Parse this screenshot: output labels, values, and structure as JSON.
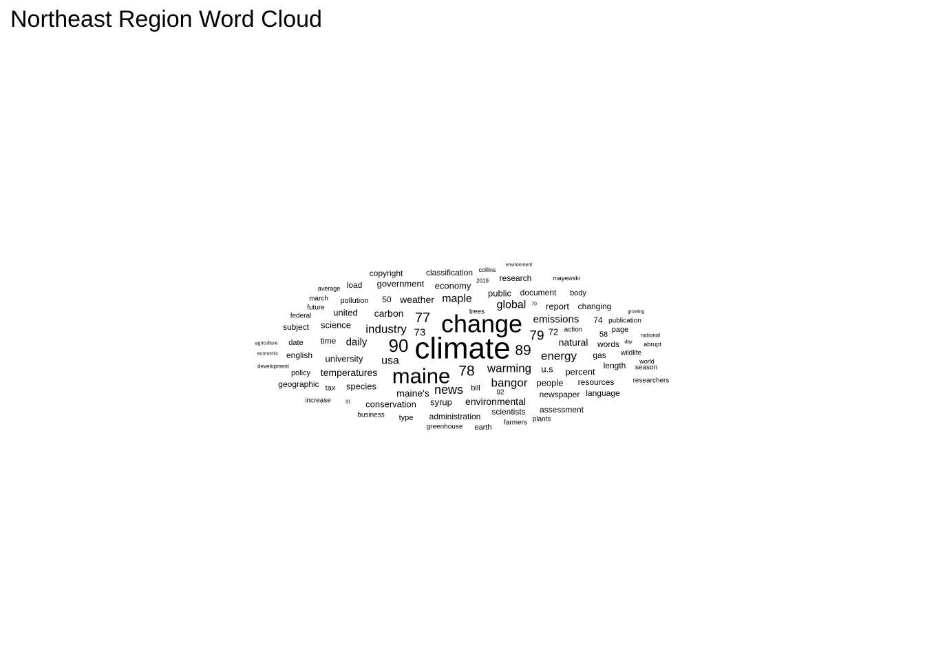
{
  "chart_data": {
    "type": "wordcloud",
    "title": "Northeast Region Word Cloud",
    "words": [
      {
        "text": "climate",
        "weight": 44
      },
      {
        "text": "change",
        "weight": 36
      },
      {
        "text": "maine",
        "weight": 31
      },
      {
        "text": "90",
        "weight": 26
      },
      {
        "text": "89",
        "weight": 21
      },
      {
        "text": "78",
        "weight": 21
      },
      {
        "text": "77",
        "weight": 20
      },
      {
        "text": "79",
        "weight": 19
      },
      {
        "text": "news",
        "weight": 18
      },
      {
        "text": "warming",
        "weight": 17
      },
      {
        "text": "bangor",
        "weight": 17
      },
      {
        "text": "industry",
        "weight": 17
      },
      {
        "text": "energy",
        "weight": 17
      },
      {
        "text": "global",
        "weight": 16
      },
      {
        "text": "usa",
        "weight": 16
      },
      {
        "text": "maple",
        "weight": 16
      },
      {
        "text": "73",
        "weight": 15
      },
      {
        "text": "emissions",
        "weight": 15
      },
      {
        "text": "daily",
        "weight": 15
      },
      {
        "text": "carbon",
        "weight": 14
      },
      {
        "text": "natural",
        "weight": 14
      },
      {
        "text": "environmental",
        "weight": 14
      },
      {
        "text": "temperatures",
        "weight": 14
      },
      {
        "text": "weather",
        "weight": 14
      },
      {
        "text": "maine's",
        "weight": 14
      },
      {
        "text": "72",
        "weight": 13
      },
      {
        "text": "u.s",
        "weight": 13
      },
      {
        "text": "university",
        "weight": 13
      },
      {
        "text": "species",
        "weight": 13
      },
      {
        "text": "science",
        "weight": 13
      },
      {
        "text": "percent",
        "weight": 13
      },
      {
        "text": "economy",
        "weight": 13
      },
      {
        "text": "government",
        "weight": 13
      },
      {
        "text": "report",
        "weight": 13
      },
      {
        "text": "public",
        "weight": 13
      },
      {
        "text": "united",
        "weight": 13
      },
      {
        "text": "people",
        "weight": 13
      },
      {
        "text": "conservation",
        "weight": 13
      },
      {
        "text": "syrup",
        "weight": 13
      },
      {
        "text": "research",
        "weight": 12
      },
      {
        "text": "classification",
        "weight": 12
      },
      {
        "text": "time",
        "weight": 12
      },
      {
        "text": "english",
        "weight": 12
      },
      {
        "text": "administration",
        "weight": 12
      },
      {
        "text": "scientists",
        "weight": 12
      },
      {
        "text": "assessment",
        "weight": 12
      },
      {
        "text": "newspaper",
        "weight": 12
      },
      {
        "text": "resources",
        "weight": 12
      },
      {
        "text": "language",
        "weight": 12
      },
      {
        "text": "changing",
        "weight": 12
      },
      {
        "text": "document",
        "weight": 12
      },
      {
        "text": "74",
        "weight": 12
      },
      {
        "text": "50",
        "weight": 12
      },
      {
        "text": "geographic",
        "weight": 12
      },
      {
        "text": "words",
        "weight": 12
      },
      {
        "text": "gas",
        "weight": 12
      },
      {
        "text": "length",
        "weight": 12
      },
      {
        "text": "subject",
        "weight": 12
      },
      {
        "text": "copyright",
        "weight": 12
      },
      {
        "text": "load",
        "weight": 12
      },
      {
        "text": "58",
        "weight": 11
      },
      {
        "text": "page",
        "weight": 11
      },
      {
        "text": "pollution",
        "weight": 11
      },
      {
        "text": "body",
        "weight": 11
      },
      {
        "text": "tax",
        "weight": 11
      },
      {
        "text": "bill",
        "weight": 11
      },
      {
        "text": "date",
        "weight": 11
      },
      {
        "text": "policy",
        "weight": 11
      },
      {
        "text": "type",
        "weight": 11
      },
      {
        "text": "earth",
        "weight": 11
      },
      {
        "text": "wildlife",
        "weight": 10
      },
      {
        "text": "publication",
        "weight": 10
      },
      {
        "text": "92",
        "weight": 10
      },
      {
        "text": "researchers",
        "weight": 10
      },
      {
        "text": "season",
        "weight": 10
      },
      {
        "text": "trees",
        "weight": 10
      },
      {
        "text": "increase",
        "weight": 10
      },
      {
        "text": "future",
        "weight": 10
      },
      {
        "text": "federal",
        "weight": 10
      },
      {
        "text": "march",
        "weight": 10
      },
      {
        "text": "greenhouse",
        "weight": 10
      },
      {
        "text": "farmers",
        "weight": 10
      },
      {
        "text": "plants",
        "weight": 10
      },
      {
        "text": "business",
        "weight": 10
      },
      {
        "text": "action",
        "weight": 10
      },
      {
        "text": "mayewski",
        "weight": 9
      },
      {
        "text": "collins",
        "weight": 9
      },
      {
        "text": "average",
        "weight": 9
      },
      {
        "text": "abrupt",
        "weight": 9
      },
      {
        "text": "world",
        "weight": 9
      },
      {
        "text": "national",
        "weight": 8
      },
      {
        "text": "2019",
        "weight": 8
      },
      {
        "text": "development",
        "weight": 8
      },
      {
        "text": "70",
        "weight": 7
      },
      {
        "text": "91",
        "weight": 7
      },
      {
        "text": "environment",
        "weight": 7
      },
      {
        "text": "growing",
        "weight": 7
      },
      {
        "text": "day",
        "weight": 7
      },
      {
        "text": "agriculture",
        "weight": 7
      },
      {
        "text": "economic",
        "weight": 7
      }
    ]
  }
}
